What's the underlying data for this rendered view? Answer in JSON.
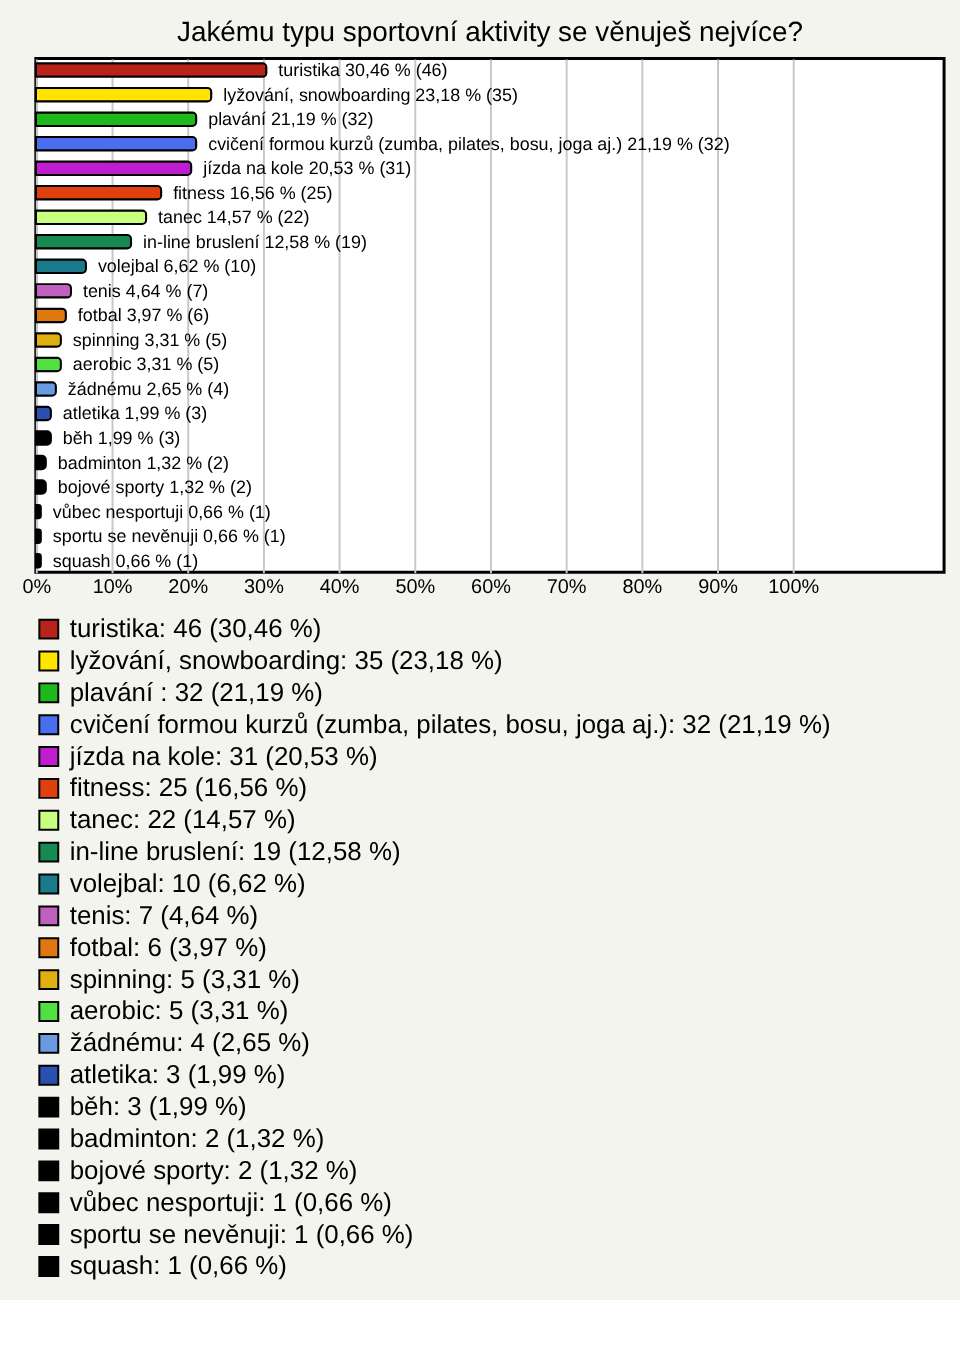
{
  "chart_data": {
    "type": "bar",
    "orientation": "horizontal",
    "title": "Jakému typu sportovní aktivity se věnuješ nejvíce?",
    "categories": [
      "turistika",
      "lyžování, snowboarding",
      "plavání",
      "cvičení formou kurzů (zumba, pilates, bosu, joga aj.)",
      "jízda na kole",
      "fitness",
      "tanec",
      "in-line bruslení",
      "volejbal",
      "tenis",
      "fotbal",
      "spinning",
      "aerobic",
      "žádnému",
      "atletika",
      "běh",
      "badminton",
      "bojové sporty",
      "vůbec nesportuji",
      "sportu se nevěnuji",
      "squash"
    ],
    "series": [
      {
        "name": "turistika: 46 (30,46 %)",
        "color": "#b8231a",
        "values": [
          30.46,
          null,
          null,
          null,
          null,
          null,
          null,
          null,
          null,
          null,
          null,
          null,
          null,
          null,
          null,
          null,
          null,
          null,
          null,
          null,
          null
        ],
        "value_labels": [
          "30,46 % (46)",
          null,
          null,
          null,
          null,
          null,
          null,
          null,
          null,
          null,
          null,
          null,
          null,
          null,
          null,
          null,
          null,
          null,
          null,
          null,
          null
        ]
      },
      {
        "name": "lyžování, snowboarding: 35 (23,18 %)",
        "color": "#ffe400",
        "values": [
          null,
          23.18,
          null,
          null,
          null,
          null,
          null,
          null,
          null,
          null,
          null,
          null,
          null,
          null,
          null,
          null,
          null,
          null,
          null,
          null,
          null
        ],
        "value_labels": [
          null,
          "23,18 % (35)",
          null,
          null,
          null,
          null,
          null,
          null,
          null,
          null,
          null,
          null,
          null,
          null,
          null,
          null,
          null,
          null,
          null,
          null,
          null
        ]
      },
      {
        "name": "plavání : 32 (21,19 %)",
        "color": "#1cb81c",
        "values": [
          null,
          null,
          21.19,
          null,
          null,
          null,
          null,
          null,
          null,
          null,
          null,
          null,
          null,
          null,
          null,
          null,
          null,
          null,
          null,
          null,
          null
        ],
        "value_labels": [
          null,
          null,
          "21,19 % (32)",
          null,
          null,
          null,
          null,
          null,
          null,
          null,
          null,
          null,
          null,
          null,
          null,
          null,
          null,
          null,
          null,
          null,
          null
        ]
      },
      {
        "name": "cvičení formou kurzů (zumba, pilates, bosu, joga aj.): 32 (21,19 %)",
        "color": "#4a6ef0",
        "values": [
          null,
          null,
          null,
          21.19,
          null,
          null,
          null,
          null,
          null,
          null,
          null,
          null,
          null,
          null,
          null,
          null,
          null,
          null,
          null,
          null,
          null
        ],
        "value_labels": [
          null,
          null,
          null,
          "21,19 % (32)",
          null,
          null,
          null,
          null,
          null,
          null,
          null,
          null,
          null,
          null,
          null,
          null,
          null,
          null,
          null,
          null,
          null
        ]
      },
      {
        "name": "jízda na kole: 31 (20,53 %)",
        "color": "#c01cd0",
        "values": [
          null,
          null,
          null,
          null,
          20.53,
          null,
          null,
          null,
          null,
          null,
          null,
          null,
          null,
          null,
          null,
          null,
          null,
          null,
          null,
          null,
          null
        ],
        "value_labels": [
          null,
          null,
          null,
          null,
          "20,53 % (31)",
          null,
          null,
          null,
          null,
          null,
          null,
          null,
          null,
          null,
          null,
          null,
          null,
          null,
          null,
          null,
          null
        ]
      },
      {
        "name": "fitness: 25 (16,56 %)",
        "color": "#e0400e",
        "values": [
          null,
          null,
          null,
          null,
          null,
          16.56,
          null,
          null,
          null,
          null,
          null,
          null,
          null,
          null,
          null,
          null,
          null,
          null,
          null,
          null,
          null
        ],
        "value_labels": [
          null,
          null,
          null,
          null,
          null,
          "16,56 % (25)",
          null,
          null,
          null,
          null,
          null,
          null,
          null,
          null,
          null,
          null,
          null,
          null,
          null,
          null,
          null
        ]
      },
      {
        "name": "tanec: 22 (14,57 %)",
        "color": "#c8ff80",
        "values": [
          null,
          null,
          null,
          null,
          null,
          null,
          14.57,
          null,
          null,
          null,
          null,
          null,
          null,
          null,
          null,
          null,
          null,
          null,
          null,
          null,
          null
        ],
        "value_labels": [
          null,
          null,
          null,
          null,
          null,
          null,
          "14,57 % (22)",
          null,
          null,
          null,
          null,
          null,
          null,
          null,
          null,
          null,
          null,
          null,
          null,
          null,
          null
        ]
      },
      {
        "name": "in-line bruslení: 19 (12,58 %)",
        "color": "#168a50",
        "values": [
          null,
          null,
          null,
          null,
          null,
          null,
          null,
          12.58,
          null,
          null,
          null,
          null,
          null,
          null,
          null,
          null,
          null,
          null,
          null,
          null,
          null
        ],
        "value_labels": [
          null,
          null,
          null,
          null,
          null,
          null,
          null,
          "12,58 % (19)",
          null,
          null,
          null,
          null,
          null,
          null,
          null,
          null,
          null,
          null,
          null,
          null,
          null
        ]
      },
      {
        "name": "volejbal: 10 (6,62 %)",
        "color": "#1a7a8a",
        "values": [
          null,
          null,
          null,
          null,
          null,
          null,
          null,
          null,
          6.62,
          null,
          null,
          null,
          null,
          null,
          null,
          null,
          null,
          null,
          null,
          null,
          null
        ],
        "value_labels": [
          null,
          null,
          null,
          null,
          null,
          null,
          null,
          null,
          "6,62 % (10)",
          null,
          null,
          null,
          null,
          null,
          null,
          null,
          null,
          null,
          null,
          null,
          null
        ]
      },
      {
        "name": "tenis: 7 (4,64 %)",
        "color": "#c060c0",
        "values": [
          null,
          null,
          null,
          null,
          null,
          null,
          null,
          null,
          null,
          4.64,
          null,
          null,
          null,
          null,
          null,
          null,
          null,
          null,
          null,
          null,
          null
        ],
        "value_labels": [
          null,
          null,
          null,
          null,
          null,
          null,
          null,
          null,
          null,
          "4,64 % (7)",
          null,
          null,
          null,
          null,
          null,
          null,
          null,
          null,
          null,
          null,
          null
        ]
      },
      {
        "name": "fotbal: 6 (3,97 %)",
        "color": "#e07810",
        "values": [
          null,
          null,
          null,
          null,
          null,
          null,
          null,
          null,
          null,
          null,
          3.97,
          null,
          null,
          null,
          null,
          null,
          null,
          null,
          null,
          null,
          null
        ],
        "value_labels": [
          null,
          null,
          null,
          null,
          null,
          null,
          null,
          null,
          null,
          null,
          "3,97 % (6)",
          null,
          null,
          null,
          null,
          null,
          null,
          null,
          null,
          null,
          null
        ]
      },
      {
        "name": "spinning: 5 (3,31 %)",
        "color": "#e0b010",
        "values": [
          null,
          null,
          null,
          null,
          null,
          null,
          null,
          null,
          null,
          null,
          null,
          3.31,
          null,
          null,
          null,
          null,
          null,
          null,
          null,
          null,
          null
        ],
        "value_labels": [
          null,
          null,
          null,
          null,
          null,
          null,
          null,
          null,
          null,
          null,
          null,
          "3,31 % (5)",
          null,
          null,
          null,
          null,
          null,
          null,
          null,
          null,
          null
        ]
      },
      {
        "name": "aerobic: 5 (3,31 %)",
        "color": "#50e040",
        "values": [
          null,
          null,
          null,
          null,
          null,
          null,
          null,
          null,
          null,
          null,
          null,
          null,
          3.31,
          null,
          null,
          null,
          null,
          null,
          null,
          null,
          null
        ],
        "value_labels": [
          null,
          null,
          null,
          null,
          null,
          null,
          null,
          null,
          null,
          null,
          null,
          null,
          "3,31 % (5)",
          null,
          null,
          null,
          null,
          null,
          null,
          null,
          null
        ]
      },
      {
        "name": "žádnému: 4 (2,65 %)",
        "color": "#6a9ae0",
        "values": [
          null,
          null,
          null,
          null,
          null,
          null,
          null,
          null,
          null,
          null,
          null,
          null,
          null,
          2.65,
          null,
          null,
          null,
          null,
          null,
          null,
          null
        ],
        "value_labels": [
          null,
          null,
          null,
          null,
          null,
          null,
          null,
          null,
          null,
          null,
          null,
          null,
          null,
          "2,65 % (4)",
          null,
          null,
          null,
          null,
          null,
          null,
          null
        ]
      },
      {
        "name": "atletika: 3 (1,99 %)",
        "color": "#2a50b0",
        "values": [
          null,
          null,
          null,
          null,
          null,
          null,
          null,
          null,
          null,
          null,
          null,
          null,
          null,
          null,
          1.99,
          null,
          null,
          null,
          null,
          null,
          null
        ],
        "value_labels": [
          null,
          null,
          null,
          null,
          null,
          null,
          null,
          null,
          null,
          null,
          null,
          null,
          null,
          null,
          "1,99 % (3)",
          null,
          null,
          null,
          null,
          null,
          null
        ]
      },
      {
        "name": "běh: 3 (1,99 %)",
        "color": "#000000",
        "values": [
          null,
          null,
          null,
          null,
          null,
          null,
          null,
          null,
          null,
          null,
          null,
          null,
          null,
          null,
          null,
          1.99,
          null,
          null,
          null,
          null,
          null
        ],
        "value_labels": [
          null,
          null,
          null,
          null,
          null,
          null,
          null,
          null,
          null,
          null,
          null,
          null,
          null,
          null,
          null,
          "1,99 % (3)",
          null,
          null,
          null,
          null,
          null
        ]
      },
      {
        "name": "badminton: 2 (1,32 %)",
        "color": "#000000",
        "values": [
          null,
          null,
          null,
          null,
          null,
          null,
          null,
          null,
          null,
          null,
          null,
          null,
          null,
          null,
          null,
          null,
          1.32,
          null,
          null,
          null,
          null
        ],
        "value_labels": [
          null,
          null,
          null,
          null,
          null,
          null,
          null,
          null,
          null,
          null,
          null,
          null,
          null,
          null,
          null,
          null,
          "1,32 % (2)",
          null,
          null,
          null,
          null
        ]
      },
      {
        "name": "bojové sporty: 2 (1,32 %)",
        "color": "#000000",
        "values": [
          null,
          null,
          null,
          null,
          null,
          null,
          null,
          null,
          null,
          null,
          null,
          null,
          null,
          null,
          null,
          null,
          null,
          1.32,
          null,
          null,
          null
        ],
        "value_labels": [
          null,
          null,
          null,
          null,
          null,
          null,
          null,
          null,
          null,
          null,
          null,
          null,
          null,
          null,
          null,
          null,
          null,
          "1,32 % (2)",
          null,
          null,
          null
        ]
      },
      {
        "name": "vůbec nesportuji: 1 (0,66 %)",
        "color": "#000000",
        "values": [
          null,
          null,
          null,
          null,
          null,
          null,
          null,
          null,
          null,
          null,
          null,
          null,
          null,
          null,
          null,
          null,
          null,
          null,
          0.66,
          null,
          null
        ],
        "value_labels": [
          null,
          null,
          null,
          null,
          null,
          null,
          null,
          null,
          null,
          null,
          null,
          null,
          null,
          null,
          null,
          null,
          null,
          null,
          "0,66 % (1)",
          null,
          null
        ]
      },
      {
        "name": "sportu se nevěnuji: 1 (0,66 %)",
        "color": "#000000",
        "values": [
          null,
          null,
          null,
          null,
          null,
          null,
          null,
          null,
          null,
          null,
          null,
          null,
          null,
          null,
          null,
          null,
          null,
          null,
          null,
          0.66,
          null
        ],
        "value_labels": [
          null,
          null,
          null,
          null,
          null,
          null,
          null,
          null,
          null,
          null,
          null,
          null,
          null,
          null,
          null,
          null,
          null,
          null,
          null,
          "0,66 % (1)",
          null
        ]
      },
      {
        "name": "squash: 1 (0,66 %)",
        "color": "#000000",
        "values": [
          null,
          null,
          null,
          null,
          null,
          null,
          null,
          null,
          null,
          null,
          null,
          null,
          null,
          null,
          null,
          null,
          null,
          null,
          null,
          null,
          0.66
        ],
        "value_labels": [
          null,
          null,
          null,
          null,
          null,
          null,
          null,
          null,
          null,
          null,
          null,
          null,
          null,
          null,
          null,
          null,
          null,
          null,
          null,
          null,
          "0,66 % (1)"
        ]
      }
    ],
    "xlim": [
      0,
      120
    ],
    "xticks": [
      {
        "value": 0,
        "label": "0%"
      },
      {
        "value": 10,
        "label": "10%"
      },
      {
        "value": 20,
        "label": "20%"
      },
      {
        "value": 30,
        "label": "30%"
      },
      {
        "value": 40,
        "label": "40%"
      },
      {
        "value": 50,
        "label": "50%"
      },
      {
        "value": 60,
        "label": "60%"
      },
      {
        "value": 70,
        "label": "70%"
      },
      {
        "value": 80,
        "label": "80%"
      },
      {
        "value": 90,
        "label": "90%"
      },
      {
        "value": 100,
        "label": "100%"
      }
    ],
    "grid": "x",
    "legend": "bottom",
    "tick_labels": "x"
  }
}
